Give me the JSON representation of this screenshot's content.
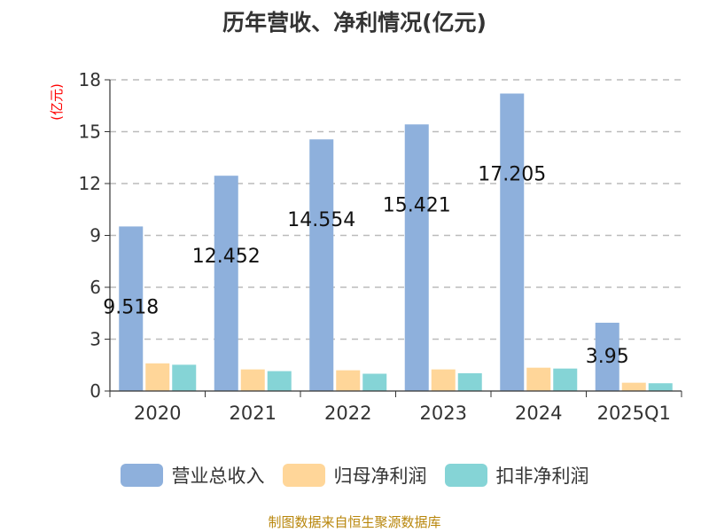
{
  "title": "历年营收、净利情况(亿元)",
  "source": "制图数据来自恒生聚源数据库",
  "colors": {
    "revenue": "#8eb0dc",
    "parent_profit": "#ffd699",
    "deducted_profit": "#85d4d6",
    "unit": "#ff0000",
    "grid": "#bbbbbb",
    "axis": "#333333"
  },
  "chart_data": {
    "type": "bar",
    "title": "历年营收、净利情况(亿元)",
    "ylabel": "(亿元)",
    "ylim": [
      0,
      18
    ],
    "yticks": [
      "0",
      "3",
      "6",
      "9",
      "12",
      "15",
      "18"
    ],
    "grid": true,
    "legend_position": "bottom",
    "categories": [
      "2020",
      "2021",
      "2022",
      "2023",
      "2024",
      "2025Q1"
    ],
    "series": [
      {
        "name": "营业总收入",
        "values": [
          9.518,
          12.452,
          14.554,
          15.421,
          17.205,
          3.95
        ],
        "labels": [
          "9.518",
          "12.452",
          "14.554",
          "15.421",
          "17.205",
          "3.95"
        ]
      },
      {
        "name": "归母净利润",
        "values": [
          1.6,
          1.25,
          1.2,
          1.25,
          1.35,
          0.48
        ]
      },
      {
        "name": "扣非净利润",
        "values": [
          1.52,
          1.15,
          1.0,
          1.03,
          1.3,
          0.45
        ]
      }
    ]
  }
}
